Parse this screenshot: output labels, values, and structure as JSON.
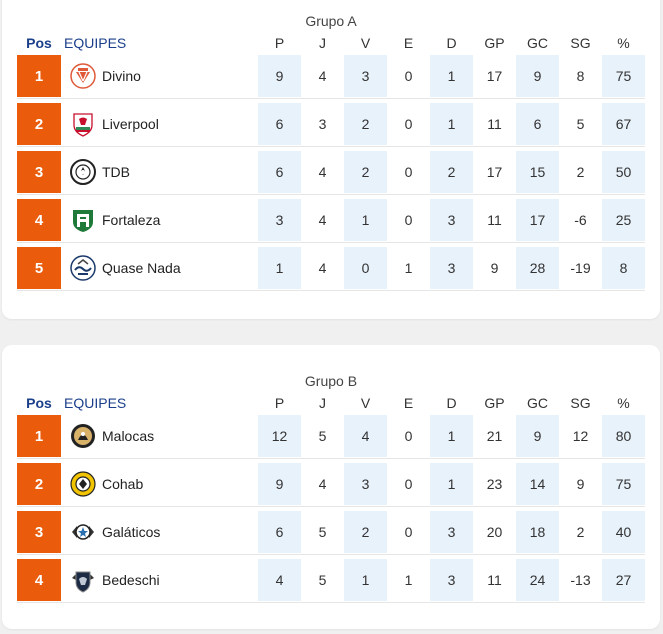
{
  "headers": {
    "pos": "Pos",
    "teams": "EQUIPES",
    "cols": [
      "P",
      "J",
      "V",
      "E",
      "D",
      "GP",
      "GC",
      "SG",
      "%"
    ]
  },
  "groups": [
    {
      "title": "Grupo A",
      "rows": [
        {
          "rank": "1",
          "team": "Divino",
          "logo": "divino-crest-icon",
          "stats": [
            "9",
            "4",
            "3",
            "0",
            "1",
            "17",
            "9",
            "8",
            "75"
          ]
        },
        {
          "rank": "2",
          "team": "Liverpool",
          "logo": "liverpool-crest-icon",
          "stats": [
            "6",
            "3",
            "2",
            "0",
            "1",
            "11",
            "6",
            "5",
            "67"
          ]
        },
        {
          "rank": "3",
          "team": "TDB",
          "logo": "tdb-crest-icon",
          "stats": [
            "6",
            "4",
            "2",
            "0",
            "2",
            "17",
            "15",
            "2",
            "50"
          ]
        },
        {
          "rank": "4",
          "team": "Fortaleza",
          "logo": "fortaleza-crest-icon",
          "stats": [
            "3",
            "4",
            "1",
            "0",
            "3",
            "11",
            "17",
            "-6",
            "25"
          ]
        },
        {
          "rank": "5",
          "team": "Quase Nada",
          "logo": "quase-nada-crest-icon",
          "stats": [
            "1",
            "4",
            "0",
            "1",
            "3",
            "9",
            "28",
            "-19",
            "8"
          ]
        }
      ]
    },
    {
      "title": "Grupo B",
      "rows": [
        {
          "rank": "1",
          "team": "Malocas",
          "logo": "malocas-crest-icon",
          "stats": [
            "12",
            "5",
            "4",
            "0",
            "1",
            "21",
            "9",
            "12",
            "80"
          ]
        },
        {
          "rank": "2",
          "team": "Cohab",
          "logo": "cohab-crest-icon",
          "stats": [
            "9",
            "4",
            "3",
            "0",
            "1",
            "23",
            "14",
            "9",
            "75"
          ]
        },
        {
          "rank": "3",
          "team": "Galáticos",
          "logo": "galaticos-crest-icon",
          "stats": [
            "6",
            "5",
            "2",
            "0",
            "3",
            "20",
            "18",
            "2",
            "40"
          ]
        },
        {
          "rank": "4",
          "team": "Bedeschi",
          "logo": "bedeschi-crest-icon",
          "stats": [
            "4",
            "5",
            "1",
            "1",
            "3",
            "11",
            "24",
            "-13",
            "27"
          ]
        }
      ]
    }
  ],
  "colors": {
    "rank_bg": "#ea5b0c",
    "header_blue": "#1b3f8b",
    "shade": "#e8f2fb"
  }
}
